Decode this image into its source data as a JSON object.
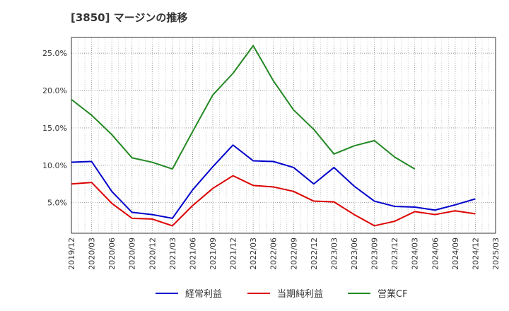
{
  "title": "[3850]  マージンの推移",
  "chart_data": {
    "type": "line",
    "x": [
      "2019/12",
      "2020/03",
      "2020/06",
      "2020/09",
      "2020/12",
      "2021/03",
      "2021/06",
      "2021/09",
      "2021/12",
      "2022/03",
      "2022/06",
      "2022/09",
      "2022/12",
      "2023/03",
      "2023/06",
      "2023/09",
      "2023/12",
      "2024/03",
      "2024/06",
      "2024/09",
      "2024/12",
      "2025/03"
    ],
    "y_ticks": [
      "5.0%",
      "10.0%",
      "15.0%",
      "20.0%",
      "25.0%"
    ],
    "ylim": [
      0.9,
      27.1
    ],
    "grid": true,
    "legend_position": "bottom",
    "series": [
      {
        "name": "経常利益",
        "color": "#0000cc",
        "values": [
          10.4,
          10.5,
          6.5,
          3.7,
          3.4,
          2.9,
          6.7,
          9.8,
          12.7,
          10.6,
          10.5,
          9.7,
          7.5,
          9.7,
          7.2,
          5.2,
          4.5,
          4.4,
          4.0,
          4.7,
          5.5,
          null
        ]
      },
      {
        "name": "当期純利益",
        "color": "#dd0000",
        "values": [
          7.5,
          7.7,
          4.9,
          2.9,
          2.8,
          1.9,
          4.6,
          6.9,
          8.6,
          7.3,
          7.1,
          6.5,
          5.2,
          5.1,
          3.4,
          1.9,
          2.5,
          3.8,
          3.4,
          3.9,
          3.5,
          null
        ]
      },
      {
        "name": "営業CF",
        "color": "#228822",
        "values": [
          18.8,
          16.7,
          14.1,
          11.0,
          10.4,
          9.5,
          14.5,
          19.4,
          22.3,
          26.0,
          21.3,
          17.4,
          14.8,
          11.5,
          12.6,
          13.3,
          11.1,
          9.5,
          null,
          null,
          null,
          null
        ]
      }
    ]
  }
}
